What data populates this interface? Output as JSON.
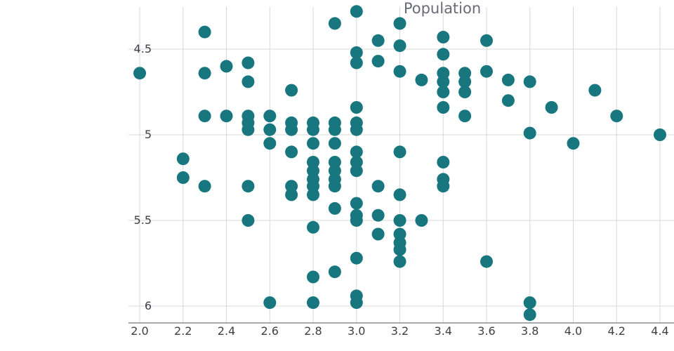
{
  "chart": {
    "background": "#ffffff",
    "style": {
      "dot_color": "#17767e",
      "grid_color": "#d8d8d8",
      "axis_color": "#8c8c92",
      "label_color": "#3f3f46",
      "title_color": "#6b6b76"
    }
  },
  "chart_data": {
    "type": "scatter",
    "title": "Population",
    "xlabel": "",
    "ylabel": "",
    "grid": true,
    "y_axis_reversed": true,
    "x_range": [
      2.0,
      4.4
    ],
    "y_range": [
      4.25,
      6.1
    ],
    "x_ticks": [
      "2.0",
      "2.2",
      "2.4",
      "2.6",
      "2.8",
      "3.0",
      "3.2",
      "3.4",
      "3.6",
      "3.8",
      "4.0",
      "4.2",
      "4.4"
    ],
    "y_ticks": [
      "4.5",
      "5",
      "5.5",
      "6"
    ],
    "marker": {
      "color": "#17767e",
      "radius": 9
    },
    "points": [
      [
        3.0,
        4.28
      ],
      [
        2.9,
        4.35
      ],
      [
        3.2,
        4.35
      ],
      [
        2.3,
        4.4
      ],
      [
        3.1,
        4.45
      ],
      [
        3.4,
        4.43
      ],
      [
        3.6,
        4.45
      ],
      [
        3.2,
        4.48
      ],
      [
        3.0,
        4.52
      ],
      [
        3.4,
        4.53
      ],
      [
        3.0,
        4.58
      ],
      [
        3.1,
        4.57
      ],
      [
        2.4,
        4.6
      ],
      [
        2.5,
        4.58
      ],
      [
        3.2,
        4.63
      ],
      [
        2.0,
        4.64
      ],
      [
        2.3,
        4.64
      ],
      [
        3.3,
        4.68
      ],
      [
        3.4,
        4.64
      ],
      [
        3.5,
        4.64
      ],
      [
        3.6,
        4.63
      ],
      [
        2.5,
        4.69
      ],
      [
        3.4,
        4.69
      ],
      [
        3.5,
        4.69
      ],
      [
        3.7,
        4.68
      ],
      [
        3.8,
        4.69
      ],
      [
        2.7,
        4.74
      ],
      [
        4.1,
        4.74
      ],
      [
        3.4,
        4.75
      ],
      [
        3.5,
        4.75
      ],
      [
        3.7,
        4.8
      ],
      [
        3.4,
        4.84
      ],
      [
        3.9,
        4.84
      ],
      [
        3.0,
        4.84
      ],
      [
        2.3,
        4.89
      ],
      [
        2.4,
        4.89
      ],
      [
        2.5,
        4.89
      ],
      [
        2.6,
        4.89
      ],
      [
        3.5,
        4.89
      ],
      [
        4.2,
        4.89
      ],
      [
        2.5,
        4.93
      ],
      [
        2.7,
        4.93
      ],
      [
        2.8,
        4.93
      ],
      [
        2.9,
        4.93
      ],
      [
        3.0,
        4.93
      ],
      [
        2.5,
        4.97
      ],
      [
        2.6,
        4.97
      ],
      [
        2.7,
        4.97
      ],
      [
        2.8,
        4.97
      ],
      [
        2.9,
        4.97
      ],
      [
        3.0,
        4.97
      ],
      [
        3.8,
        4.99
      ],
      [
        4.4,
        5.0
      ],
      [
        2.6,
        5.05
      ],
      [
        2.8,
        5.05
      ],
      [
        2.9,
        5.05
      ],
      [
        4.0,
        5.05
      ],
      [
        2.7,
        5.1
      ],
      [
        3.0,
        5.1
      ],
      [
        3.2,
        5.1
      ],
      [
        2.2,
        5.14
      ],
      [
        2.8,
        5.16
      ],
      [
        2.9,
        5.16
      ],
      [
        3.0,
        5.16
      ],
      [
        3.4,
        5.16
      ],
      [
        2.8,
        5.21
      ],
      [
        2.9,
        5.21
      ],
      [
        3.0,
        5.21
      ],
      [
        2.2,
        5.25
      ],
      [
        2.8,
        5.26
      ],
      [
        2.9,
        5.26
      ],
      [
        3.4,
        5.26
      ],
      [
        2.3,
        5.3
      ],
      [
        2.5,
        5.3
      ],
      [
        2.7,
        5.3
      ],
      [
        2.8,
        5.3
      ],
      [
        2.9,
        5.3
      ],
      [
        3.1,
        5.3
      ],
      [
        3.4,
        5.3
      ],
      [
        2.7,
        5.35
      ],
      [
        2.8,
        5.35
      ],
      [
        3.2,
        5.35
      ],
      [
        2.9,
        5.43
      ],
      [
        3.0,
        5.4
      ],
      [
        3.0,
        5.47
      ],
      [
        3.1,
        5.47
      ],
      [
        2.5,
        5.5
      ],
      [
        3.0,
        5.5
      ],
      [
        3.2,
        5.5
      ],
      [
        3.3,
        5.5
      ],
      [
        2.8,
        5.54
      ],
      [
        3.1,
        5.58
      ],
      [
        3.2,
        5.58
      ],
      [
        3.2,
        5.63
      ],
      [
        3.2,
        5.67
      ],
      [
        3.0,
        5.72
      ],
      [
        3.2,
        5.74
      ],
      [
        3.6,
        5.74
      ],
      [
        2.9,
        5.8
      ],
      [
        2.8,
        5.83
      ],
      [
        3.0,
        5.94
      ],
      [
        2.6,
        5.98
      ],
      [
        2.8,
        5.98
      ],
      [
        3.0,
        5.98
      ],
      [
        3.8,
        5.98
      ],
      [
        3.8,
        6.05
      ]
    ]
  }
}
